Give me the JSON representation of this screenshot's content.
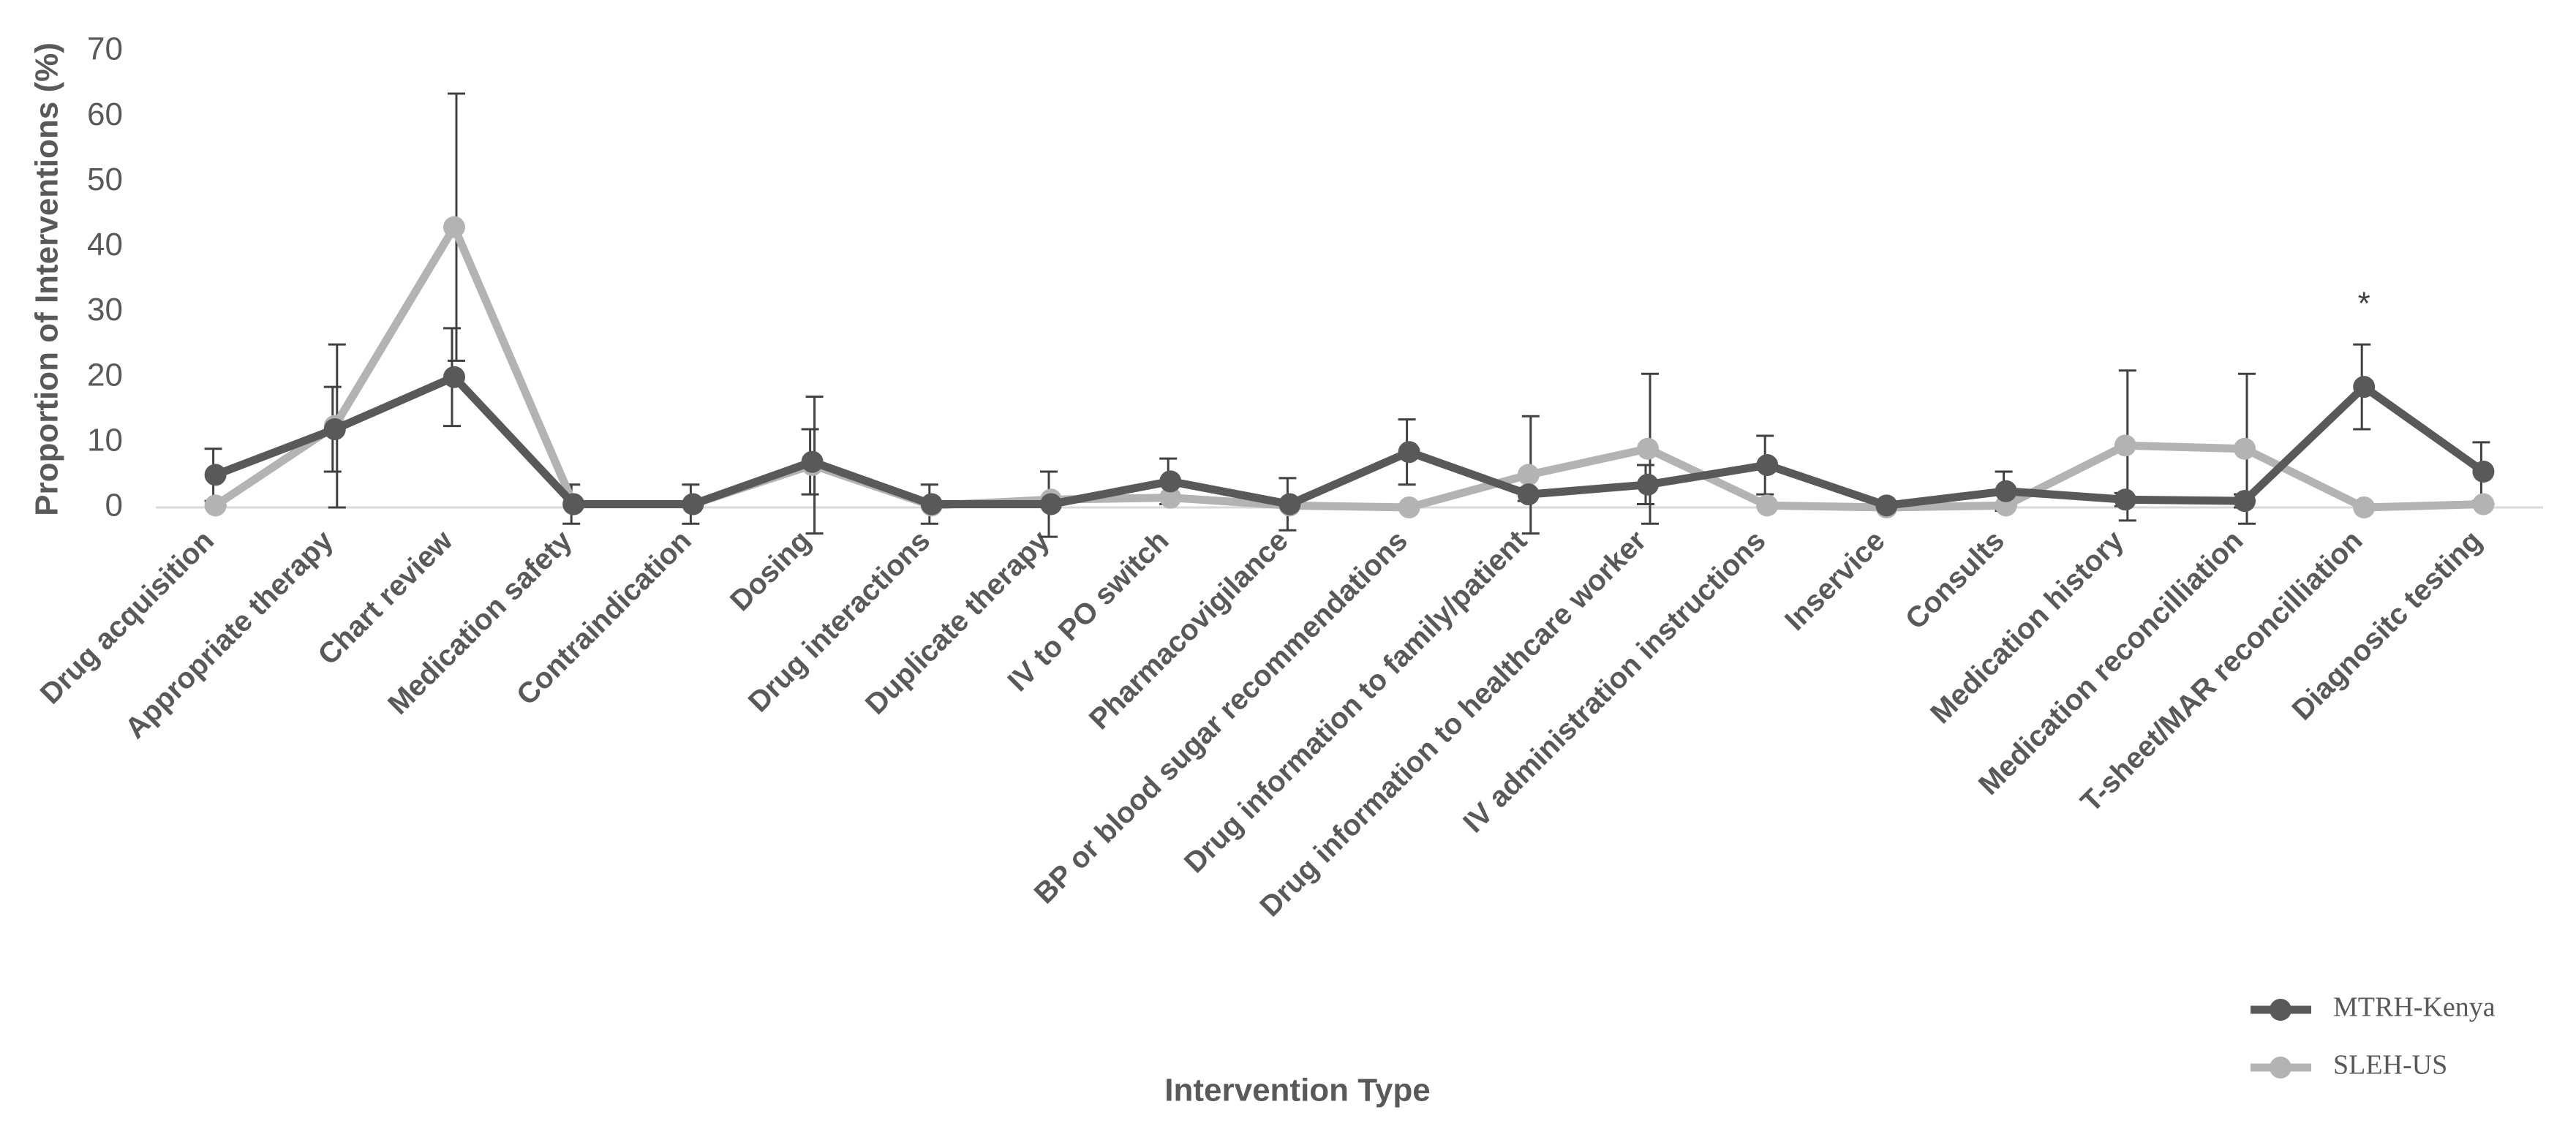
{
  "chart_data": {
    "type": "line",
    "y_label": "Proportion of Interventions (%)",
    "x_label": "Intervention Type",
    "categories": [
      "Drug acquisition",
      "Appropriate therapy",
      "Chart review",
      "Medication safety",
      "Contraindication",
      "Dosing",
      "Drug interactions",
      "Duplicate therapy",
      "IV to PO switch",
      "Pharmacovigilance",
      "BP or blood sugar recommendations",
      "Drug information to family/patient",
      "Drug information to healthcare worker",
      "IV administration instructions",
      "Inservice",
      "Consults",
      "Medication history",
      "Medication reconcilliation",
      "T-sheet/MAR reconcilliation",
      "Diagnositc testing"
    ],
    "series": [
      {
        "name": "MTRH-Kenya",
        "color": "#595959",
        "values": [
          5,
          12,
          20,
          0.5,
          0.5,
          7,
          0.5,
          0.5,
          4,
          0.5,
          8.5,
          2,
          3.5,
          6.5,
          0.3,
          2.5,
          1.2,
          1,
          18.5,
          5.5
        ],
        "errors": [
          4,
          6.5,
          7.5,
          3,
          3,
          5,
          3,
          5,
          3.5,
          4,
          5,
          1,
          3,
          4.5,
          0.5,
          3,
          1,
          1,
          6.5,
          4.5
        ]
      },
      {
        "name": "SLEH-US",
        "color": "#b3b3b3",
        "values": [
          0.3,
          12.5,
          43,
          0.5,
          0.5,
          6.5,
          0.3,
          1.2,
          1.5,
          0.3,
          0,
          5,
          9,
          0.3,
          0,
          0.3,
          9.5,
          9,
          0,
          0.5
        ],
        "errors": [
          0,
          12.5,
          20.5,
          0,
          0,
          10.5,
          0,
          0,
          0,
          0,
          0,
          9,
          11.5,
          0,
          0,
          0,
          11.5,
          11.5,
          0,
          0
        ]
      }
    ],
    "annotations": [
      {
        "text": "*",
        "x": "T-sheet/MAR reconcilliation",
        "y": 31
      }
    ],
    "ylim": [
      0,
      70
    ],
    "yticks": [
      0,
      10,
      20,
      30,
      40,
      50,
      60,
      70
    ],
    "grid": false,
    "legend": "bottom-right"
  }
}
